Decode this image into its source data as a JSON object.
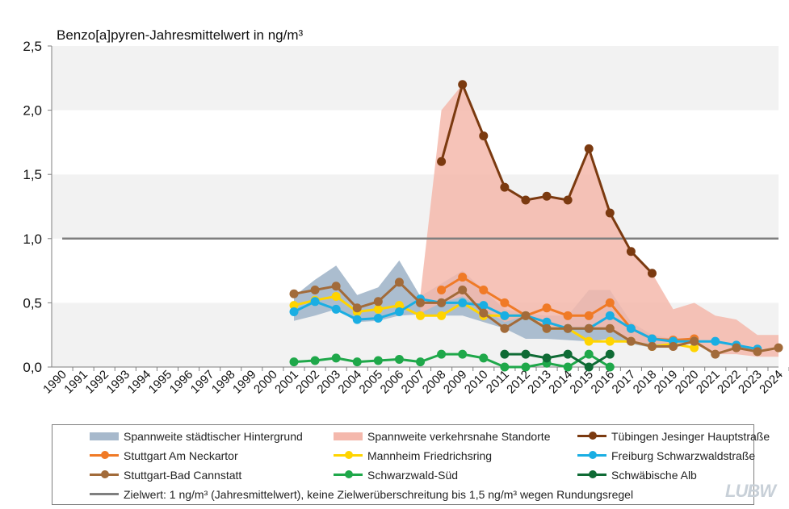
{
  "chart_data": {
    "type": "line",
    "title": "Benzo[a]pyren-Jahresmittelwert  in ng/m³",
    "ylim": [
      0,
      2.5
    ],
    "yticks": [
      "0,0",
      "0,5",
      "1,0",
      "1,5",
      "2,0",
      "2,5"
    ],
    "categories": [
      "1990",
      "1991",
      "1992",
      "1993",
      "1994",
      "1995",
      "1996",
      "1997",
      "1998",
      "1999",
      "2000",
      "2001",
      "2002",
      "2003",
      "2004",
      "2005",
      "2006",
      "2007",
      "2008",
      "2009",
      "2010",
      "2011",
      "2012",
      "2013",
      "2014",
      "2015",
      "2016",
      "2017",
      "2018",
      "2019",
      "2020",
      "2021",
      "2022",
      "2023",
      "2024"
    ],
    "target_value": 1.0,
    "bands": [
      {
        "name": "Spannweite städtischer Hintergrund",
        "color": "#a7b9cc",
        "points": [
          {
            "x": "2001",
            "low": 0.36,
            "high": 0.55
          },
          {
            "x": "2002",
            "low": 0.4,
            "high": 0.68
          },
          {
            "x": "2003",
            "low": 0.45,
            "high": 0.79
          },
          {
            "x": "2004",
            "low": 0.35,
            "high": 0.56
          },
          {
            "x": "2005",
            "low": 0.36,
            "high": 0.62
          },
          {
            "x": "2006",
            "low": 0.4,
            "high": 0.83
          },
          {
            "x": "2007",
            "low": 0.41,
            "high": 0.55
          },
          {
            "x": "2008",
            "low": 0.4,
            "high": 0.65
          },
          {
            "x": "2009",
            "low": 0.4,
            "high": 0.75
          },
          {
            "x": "2010",
            "low": 0.35,
            "high": 0.6
          },
          {
            "x": "2011",
            "low": 0.3,
            "high": 0.45
          },
          {
            "x": "2012",
            "low": 0.22,
            "high": 0.42
          },
          {
            "x": "2013",
            "low": 0.22,
            "high": 0.4
          },
          {
            "x": "2014",
            "low": 0.21,
            "high": 0.4
          },
          {
            "x": "2015",
            "low": 0.2,
            "high": 0.6
          },
          {
            "x": "2016",
            "low": 0.22,
            "high": 0.6
          },
          {
            "x": "2017",
            "low": 0.18,
            "high": 0.35
          },
          {
            "x": "2018",
            "low": 0.15,
            "high": 0.25
          },
          {
            "x": "2019",
            "low": 0.15,
            "high": 0.22
          }
        ]
      },
      {
        "name": "Spannweite verkehrsnahe Standorte",
        "color": "#f4b8ac",
        "points": [
          {
            "x": "2007",
            "low": 0.42,
            "high": 0.56
          },
          {
            "x": "2008",
            "low": 0.5,
            "high": 2.0
          },
          {
            "x": "2009",
            "low": 0.55,
            "high": 2.2
          },
          {
            "x": "2010",
            "low": 0.45,
            "high": 1.8
          },
          {
            "x": "2011",
            "low": 0.35,
            "high": 1.4
          },
          {
            "x": "2012",
            "low": 0.4,
            "high": 1.3
          },
          {
            "x": "2013",
            "low": 0.3,
            "high": 1.33
          },
          {
            "x": "2014",
            "low": 0.3,
            "high": 1.3
          },
          {
            "x": "2015",
            "low": 0.3,
            "high": 1.7
          },
          {
            "x": "2016",
            "low": 0.3,
            "high": 1.2
          },
          {
            "x": "2017",
            "low": 0.2,
            "high": 0.9
          },
          {
            "x": "2018",
            "low": 0.18,
            "high": 0.73
          },
          {
            "x": "2019",
            "low": 0.18,
            "high": 0.45
          },
          {
            "x": "2020",
            "low": 0.18,
            "high": 0.5
          },
          {
            "x": "2021",
            "low": 0.1,
            "high": 0.4
          },
          {
            "x": "2022",
            "low": 0.1,
            "high": 0.37
          },
          {
            "x": "2023",
            "low": 0.08,
            "high": 0.25
          },
          {
            "x": "2024",
            "low": 0.08,
            "high": 0.25
          }
        ]
      }
    ],
    "series": [
      {
        "name": "Tübingen Jesinger Hauptstraße",
        "color": "#7b3a10",
        "points": [
          [
            "2008",
            1.6
          ],
          [
            "2009",
            2.2
          ],
          [
            "2010",
            1.8
          ],
          [
            "2011",
            1.4
          ],
          [
            "2012",
            1.3
          ],
          [
            "2013",
            1.33
          ],
          [
            "2014",
            1.3
          ],
          [
            "2015",
            1.7
          ],
          [
            "2016",
            1.2
          ],
          [
            "2017",
            0.9
          ],
          [
            "2018",
            0.73
          ]
        ]
      },
      {
        "name": "Stuttgart Am Neckartor",
        "color": "#f07a26",
        "points": [
          [
            "2008",
            0.6
          ],
          [
            "2009",
            0.7
          ],
          [
            "2010",
            0.6
          ],
          [
            "2011",
            0.5
          ],
          [
            "2012",
            0.4
          ],
          [
            "2013",
            0.46
          ],
          [
            "2014",
            0.4
          ],
          [
            "2015",
            0.4
          ],
          [
            "2016",
            0.5
          ],
          [
            "2017",
            0.3
          ],
          [
            "2018",
            0.22
          ],
          [
            "2019",
            0.21
          ],
          [
            "2020",
            0.22
          ]
        ]
      },
      {
        "name": "Mannheim Friedrichsring",
        "color": "#ffd400",
        "points": [
          [
            "2001",
            0.48
          ],
          [
            "2002",
            0.52
          ],
          [
            "2003",
            0.55
          ],
          [
            "2004",
            0.43
          ],
          [
            "2005",
            0.45
          ],
          [
            "2006",
            0.48
          ],
          [
            "2007",
            0.4
          ],
          [
            "2008",
            0.4
          ],
          [
            "2009",
            0.5
          ],
          [
            "2010",
            0.4
          ],
          [
            "2011",
            0.4
          ],
          [
            "2012",
            0.4
          ],
          [
            "2013",
            0.3
          ],
          [
            "2014",
            0.3
          ],
          [
            "2015",
            0.2
          ],
          [
            "2016",
            0.2
          ],
          [
            "2017",
            0.2
          ],
          [
            "2018",
            0.16
          ],
          [
            "2019",
            0.18
          ],
          [
            "2020",
            0.15
          ]
        ]
      },
      {
        "name": "Freiburg Schwarzwaldstraße",
        "color": "#1aaee3",
        "points": [
          [
            "2001",
            0.43
          ],
          [
            "2002",
            0.51
          ],
          [
            "2003",
            0.45
          ],
          [
            "2004",
            0.37
          ],
          [
            "2005",
            0.38
          ],
          [
            "2006",
            0.43
          ],
          [
            "2007",
            0.53
          ],
          [
            "2008",
            0.5
          ],
          [
            "2009",
            0.5
          ],
          [
            "2010",
            0.48
          ],
          [
            "2011",
            0.4
          ],
          [
            "2012",
            0.4
          ],
          [
            "2013",
            0.35
          ],
          [
            "2014",
            0.3
          ],
          [
            "2015",
            0.3
          ],
          [
            "2016",
            0.4
          ],
          [
            "2017",
            0.3
          ],
          [
            "2018",
            0.22
          ],
          [
            "2019",
            0.2
          ],
          [
            "2020",
            0.2
          ],
          [
            "2021",
            0.2
          ],
          [
            "2022",
            0.17
          ],
          [
            "2023",
            0.14
          ]
        ]
      },
      {
        "name": "Stuttgart-Bad Cannstatt",
        "color": "#a26b3a",
        "points": [
          [
            "2001",
            0.57
          ],
          [
            "2002",
            0.6
          ],
          [
            "2003",
            0.63
          ],
          [
            "2004",
            0.46
          ],
          [
            "2005",
            0.51
          ],
          [
            "2006",
            0.66
          ],
          [
            "2007",
            0.5
          ],
          [
            "2008",
            0.5
          ],
          [
            "2009",
            0.6
          ],
          [
            "2010",
            0.42
          ],
          [
            "2011",
            0.3
          ],
          [
            "2012",
            0.4
          ],
          [
            "2013",
            0.3
          ],
          [
            "2014",
            0.3
          ],
          [
            "2015",
            0.3
          ],
          [
            "2016",
            0.3
          ],
          [
            "2017",
            0.2
          ],
          [
            "2018",
            0.16
          ],
          [
            "2019",
            0.16
          ],
          [
            "2020",
            0.2
          ],
          [
            "2021",
            0.1
          ],
          [
            "2022",
            0.15
          ],
          [
            "2023",
            0.12
          ],
          [
            "2024",
            0.15
          ]
        ]
      },
      {
        "name": "Schwarzwald-Süd",
        "color": "#1fa84a",
        "points": [
          [
            "2001",
            0.04
          ],
          [
            "2002",
            0.05
          ],
          [
            "2003",
            0.07
          ],
          [
            "2004",
            0.04
          ],
          [
            "2005",
            0.05
          ],
          [
            "2006",
            0.06
          ],
          [
            "2007",
            0.04
          ],
          [
            "2008",
            0.1
          ],
          [
            "2009",
            0.1
          ],
          [
            "2010",
            0.07
          ],
          [
            "2011",
            0.0
          ],
          [
            "2012",
            0.0
          ],
          [
            "2013",
            0.03
          ],
          [
            "2014",
            0.0
          ],
          [
            "2015",
            0.1
          ],
          [
            "2016",
            0.0
          ]
        ]
      },
      {
        "name": "Schwäbische Alb",
        "color": "#0f6b35",
        "points": [
          [
            "2011",
            0.1
          ],
          [
            "2012",
            0.1
          ],
          [
            "2013",
            0.07
          ],
          [
            "2014",
            0.1
          ],
          [
            "2015",
            0.0
          ],
          [
            "2016",
            0.1
          ]
        ]
      }
    ],
    "legend": {
      "placement": "bottom",
      "target_label": "Zielwert: 1 ng/m³  (Jahresmittelwert),  keine Zielwerüberschreitung  bis 1,5 ng/m³ wegen Rundungsregel",
      "target_color": "#7f7f7f"
    }
  },
  "logo_text": "LUBW"
}
